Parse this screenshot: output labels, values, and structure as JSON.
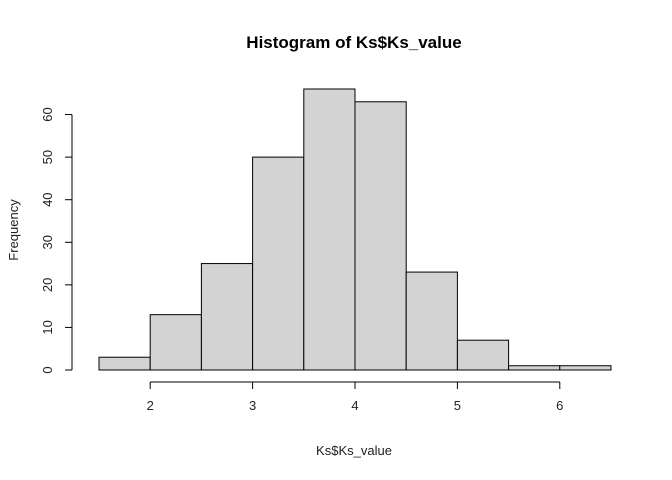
{
  "chart_data": {
    "type": "bar",
    "subtype": "histogram",
    "title": "Histogram of Ks$Ks_value",
    "xlabel": "Ks$Ks_value",
    "ylabel": "Frequency",
    "bins": [
      {
        "start": 1.5,
        "end": 2.0,
        "value": 3
      },
      {
        "start": 2.0,
        "end": 2.5,
        "value": 13
      },
      {
        "start": 2.5,
        "end": 3.0,
        "value": 25
      },
      {
        "start": 3.0,
        "end": 3.5,
        "value": 50
      },
      {
        "start": 3.5,
        "end": 4.0,
        "value": 66
      },
      {
        "start": 4.0,
        "end": 4.5,
        "value": 63
      },
      {
        "start": 4.5,
        "end": 5.0,
        "value": 23
      },
      {
        "start": 5.0,
        "end": 5.5,
        "value": 7
      },
      {
        "start": 5.5,
        "end": 6.0,
        "value": 1
      },
      {
        "start": 6.0,
        "end": 6.5,
        "value": 1
      }
    ],
    "xlim": [
      1.5,
      6.5
    ],
    "ylim": [
      0,
      66
    ],
    "x_ticks": [
      2,
      3,
      4,
      5,
      6
    ],
    "y_ticks": [
      0,
      10,
      20,
      30,
      40,
      50,
      60
    ],
    "grid": false,
    "bar_color": "#d3d3d3",
    "bar_edge_color": "#000000"
  }
}
